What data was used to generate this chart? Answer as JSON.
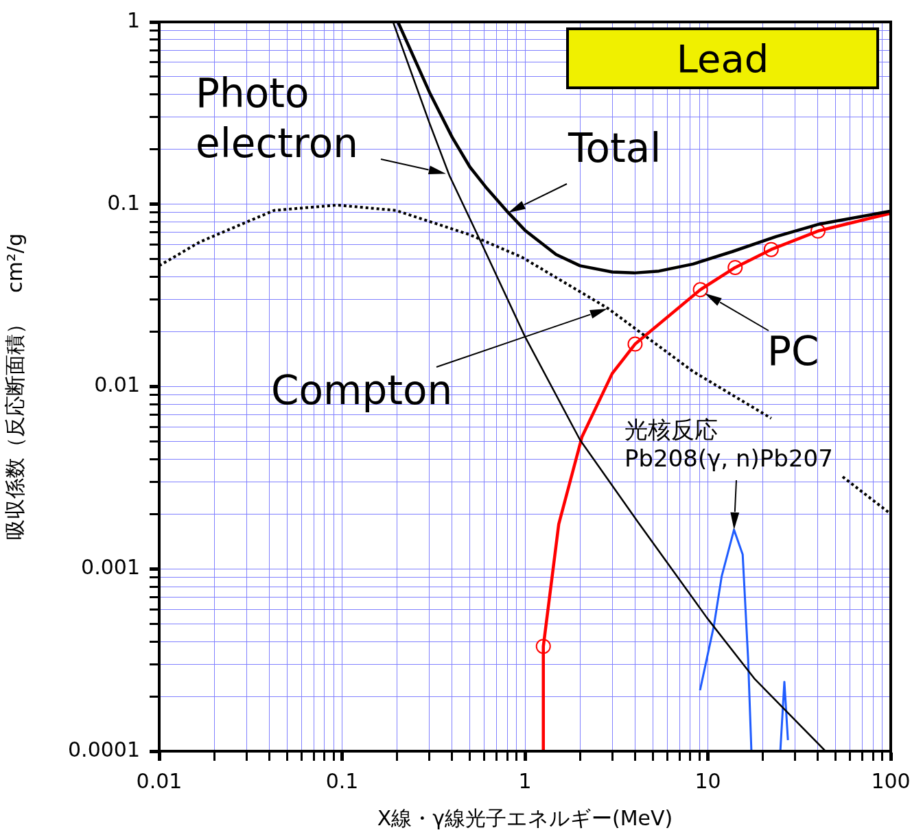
{
  "chart_data": {
    "type": "line",
    "title": "Lead",
    "xlabel": "X線・γ線光子エネルギー(MeV)",
    "ylabel": "吸収係数（反応断面積）　cm²/g",
    "log": "xy",
    "grid": true,
    "legend": false,
    "annotations": [
      {
        "text": "Photo electron",
        "x": 0.37,
        "y": 0.147
      },
      {
        "text": "Total",
        "x": 0.81,
        "y": 0.09
      },
      "Compton",
      {
        "text": "PC",
        "x": 9.6,
        "y": 0.0325
      },
      {
        "text": "光核反応\nPb208(γ, n)Pb207",
        "x": 13.9,
        "y": 0.00164
      }
    ],
    "xlim": [
      0.01,
      100
    ],
    "ylim": [
      0.0001,
      1
    ],
    "xticks": [
      0.01,
      {
        "value": 0.02,
        "label": null
      },
      {
        "value": 0.03,
        "label": null
      },
      {
        "value": 0.04,
        "label": null
      },
      {
        "value": 0.05,
        "label": null
      },
      {
        "value": 0.06,
        "label": null
      },
      {
        "value": 0.07,
        "label": null
      },
      {
        "value": 0.08,
        "label": null
      },
      {
        "value": 0.09,
        "label": null
      },
      0.1,
      {
        "value": 0.2,
        "label": null
      },
      {
        "value": 0.3,
        "label": null
      },
      {
        "value": 0.4,
        "label": null
      },
      {
        "value": 0.5,
        "label": null
      },
      {
        "value": 0.6,
        "label": null
      },
      {
        "value": 0.7,
        "label": null
      },
      {
        "value": 0.8,
        "label": null
      },
      {
        "value": 0.9,
        "label": null
      },
      1,
      {
        "value": 2,
        "label": null
      },
      {
        "value": 3,
        "label": null
      },
      {
        "value": 4,
        "label": null
      },
      {
        "value": 5,
        "label": null
      },
      {
        "value": 6,
        "label": null
      },
      {
        "value": 7,
        "label": null
      },
      {
        "value": 8,
        "label": null
      },
      {
        "value": 9,
        "label": null
      },
      10,
      {
        "value": 20,
        "label": null
      },
      {
        "value": 30,
        "label": null
      },
      {
        "value": 40,
        "label": null
      },
      {
        "value": 50,
        "label": null
      },
      {
        "value": 60,
        "label": null
      },
      {
        "value": 70,
        "label": null
      },
      {
        "value": 80,
        "label": null
      },
      {
        "value": 90,
        "label": null
      },
      100
    ],
    "yticks": [
      0.0001,
      {
        "value": 0.0002,
        "label": null
      },
      {
        "value": 0.0003,
        "label": null
      },
      {
        "value": 0.0004,
        "label": null
      },
      {
        "value": 0.0005,
        "label": null
      },
      {
        "value": 0.0006,
        "label": null
      },
      {
        "value": 0.0007,
        "label": null
      },
      {
        "value": 0.0008,
        "label": null
      },
      {
        "value": 0.0009,
        "label": null
      },
      0.001,
      {
        "value": 0.002,
        "label": null
      },
      {
        "value": 0.003,
        "label": null
      },
      {
        "value": 0.004,
        "label": null
      },
      {
        "value": 0.005,
        "label": null
      },
      {
        "value": 0.006,
        "label": null
      },
      {
        "value": 0.007,
        "label": null
      },
      {
        "value": 0.008,
        "label": null
      },
      {
        "value": 0.009,
        "label": null
      },
      0.01,
      {
        "value": 0.02,
        "label": null
      },
      {
        "value": 0.03,
        "label": null
      },
      {
        "value": 0.04,
        "label": null
      },
      {
        "value": 0.05,
        "label": null
      },
      {
        "value": 0.06,
        "label": null
      },
      {
        "value": 0.07,
        "label": null
      },
      {
        "value": 0.08,
        "label": null
      },
      {
        "value": 0.09,
        "label": null
      },
      0.1,
      {
        "value": 0.2,
        "label": null
      },
      {
        "value": 0.3,
        "label": null
      },
      {
        "value": 0.4,
        "label": null
      },
      {
        "value": 0.5,
        "label": null
      },
      {
        "value": 0.6,
        "label": null
      },
      {
        "value": 0.7,
        "label": null
      },
      {
        "value": 0.8,
        "label": null
      },
      {
        "value": 0.9,
        "label": null
      },
      1
    ],
    "series": [
      {
        "color": "#000000",
        "marker": "none",
        "line_style": "solid",
        "x": [
          0.19,
          0.3,
          0.386,
          0.57,
          1,
          2,
          4.16,
          9.87,
          18.1,
          44
        ],
        "values": [
          1,
          0.28,
          0.144,
          0.063,
          0.0188,
          0.0051,
          0.0018,
          0.00054,
          0.000248,
          0.0001
        ]
      },
      {
        "color": "#000000",
        "marker": "none",
        "line_style": "solid",
        "x": [
          0.202,
          0.301,
          0.4,
          0.5,
          0.62,
          0.81,
          1,
          1.48,
          2,
          3,
          3.95,
          5.4,
          8.3,
          13.6,
          23.6,
          41,
          100
        ],
        "values": [
          1,
          0.41,
          0.233,
          0.16,
          0.122,
          0.09,
          0.072,
          0.053,
          0.046,
          0.0425,
          0.042,
          0.043,
          0.047,
          0.055,
          0.0665,
          0.078,
          0.0917
        ]
      },
      {
        "color": "#000000",
        "marker": "none",
        "line_style": "dotted",
        "x": [
          0.01,
          0.0166,
          0.0424,
          0.094,
          0.197,
          0.5,
          0.96,
          2.82,
          8.3,
          22.2,
          35,
          54.6,
          100
        ],
        "values": [
          0.046,
          0.062,
          0.0925,
          0.099,
          0.0925,
          0.068,
          0.0513,
          0.027,
          0.0121,
          0.0067,
          null,
          0.0032,
          0.002
        ]
      },
      {
        "color": "#ff0000",
        "marker": "none",
        "line_style": "solid",
        "x": [
          1.26,
          1.26,
          1.53,
          2.05,
          3,
          4,
          9.1,
          14.1,
          22.2,
          40,
          100
        ],
        "values": [
          0.0001,
          0.000376,
          0.00176,
          0.0053,
          0.0118,
          0.0171,
          0.034,
          0.045,
          0.0565,
          0.0713,
          0.0893
        ]
      },
      {
        "type": "scatter",
        "color": "#ff0000",
        "marker": "circle",
        "x": [
          1.26,
          4,
          9.1,
          14.1,
          22.2,
          40
        ],
        "values": [
          0.000376,
          0.0171,
          0.034,
          0.045,
          0.0565,
          0.0713
        ]
      },
      {
        "color": "#1f5cff",
        "marker": "none",
        "line_style": "solid",
        "x": [
          9.06,
          10.8,
          11.9,
          13.9,
          15.5,
          16.6,
          17.3,
          20,
          24.9,
          26.2,
          27.4
        ],
        "values": [
          0.000216,
          0.00049,
          0.00091,
          0.00164,
          0.0012,
          0.00032,
          0.0001,
          null,
          0.0001,
          0.00024,
          0.000115
        ]
      }
    ]
  }
}
